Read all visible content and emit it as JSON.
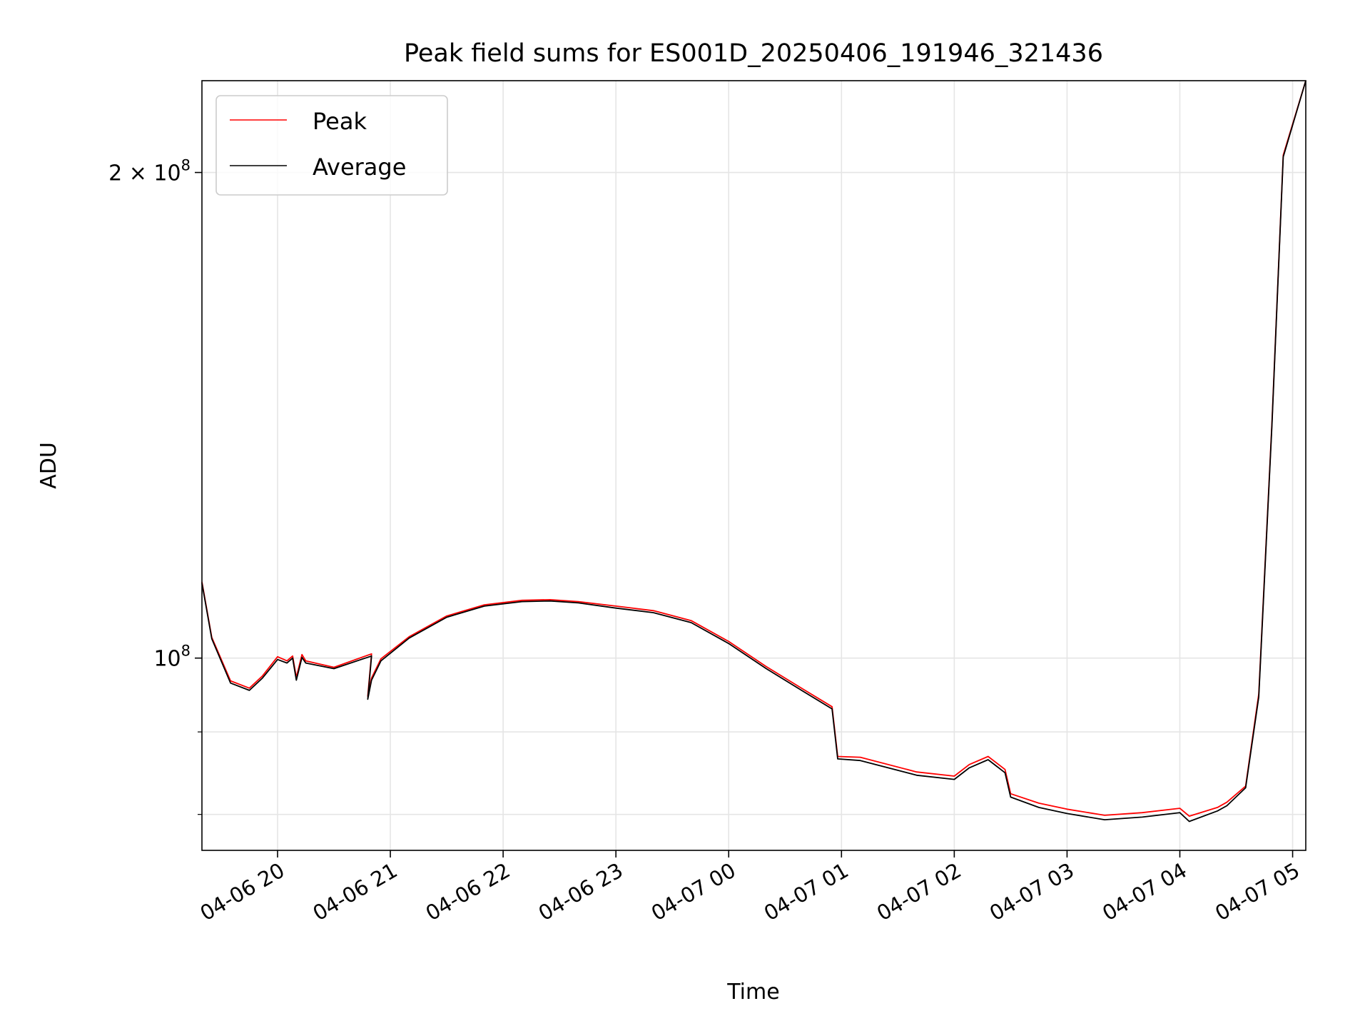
{
  "chart_data": {
    "type": "line",
    "title": "Peak field sums for ES001D_20250406_191946_321436",
    "xlabel": "Time",
    "ylabel": "ADU",
    "x_range": [
      "2025-04-06 19:19:46",
      "2025-04-07 05:07:00"
    ],
    "y_scale": "log",
    "ylim": [
      76000000,
      228000000
    ],
    "grid": true,
    "legend_position": "upper-left",
    "x_ticks": [
      "04-06 20",
      "04-06 21",
      "04-06 22",
      "04-06 23",
      "04-07 00",
      "04-07 01",
      "04-07 02",
      "04-07 03",
      "04-07 04",
      "04-07 05"
    ],
    "x_tick_times": [
      "2025-04-06 20:00",
      "2025-04-06 21:00",
      "2025-04-06 22:00",
      "2025-04-06 23:00",
      "2025-04-07 00:00",
      "2025-04-07 01:00",
      "2025-04-07 02:00",
      "2025-04-07 03:00",
      "2025-04-07 04:00",
      "2025-04-07 05:00"
    ],
    "y_major_ticks": [
      {
        "value": 100000000,
        "label": "10",
        "exponent": "8"
      },
      {
        "value": 200000000,
        "label": "2 × 10",
        "exponent": "8"
      }
    ],
    "y_minor_ticks": [
      90000000,
      80000000
    ],
    "series": [
      {
        "name": "Peak",
        "color": "#ff0000",
        "x": [
          "2025-04-06 19:19:46",
          "2025-04-06 19:25",
          "2025-04-06 19:35",
          "2025-04-06 19:45",
          "2025-04-06 19:52",
          "2025-04-06 20:00",
          "2025-04-06 20:05",
          "2025-04-06 20:08",
          "2025-04-06 20:10",
          "2025-04-06 20:13",
          "2025-04-06 20:15",
          "2025-04-06 20:30",
          "2025-04-06 20:50",
          "2025-04-06 20:48",
          "2025-04-06 20:50",
          "2025-04-06 20:55",
          "2025-04-06 21:10",
          "2025-04-06 21:30",
          "2025-04-06 21:50",
          "2025-04-06 22:10",
          "2025-04-06 22:25",
          "2025-04-06 22:40",
          "2025-04-06 23:00",
          "2025-04-06 23:20",
          "2025-04-06 23:40",
          "2025-04-07 00:00",
          "2025-04-07 00:20",
          "2025-04-07 00:40",
          "2025-04-07 00:55",
          "2025-04-07 00:58",
          "2025-04-07 01:10",
          "2025-04-07 01:40",
          "2025-04-07 02:00",
          "2025-04-07 02:08",
          "2025-04-07 02:18",
          "2025-04-07 02:27",
          "2025-04-07 02:30",
          "2025-04-07 02:45",
          "2025-04-07 03:00",
          "2025-04-07 03:20",
          "2025-04-07 03:40",
          "2025-04-07 04:00",
          "2025-04-07 04:05",
          "2025-04-07 04:20",
          "2025-04-07 04:25",
          "2025-04-07 04:35",
          "2025-04-07 04:42",
          "2025-04-07 04:49",
          "2025-04-07 04:55",
          "2025-04-07 05:07"
        ],
        "y": [
          111500000,
          103000000,
          96800000,
          95800000,
          97500000,
          100200000,
          99600000,
          100300000,
          97300000,
          100500000,
          99600000,
          98700000,
          100600000,
          94700000,
          97200000,
          99900000,
          103100000,
          106200000,
          107900000,
          108600000,
          108700000,
          108400000,
          107700000,
          107000000,
          105500000,
          102400000,
          98800000,
          95600000,
          93300000,
          86900000,
          86800000,
          85000000,
          84500000,
          85900000,
          86900000,
          85300000,
          82400000,
          81300000,
          80600000,
          79900000,
          80200000,
          80700000,
          79800000,
          80800000,
          81400000,
          83300000,
          95000000,
          140000000,
          205000000,
          228000000
        ]
      },
      {
        "name": "Average",
        "color": "#000000",
        "x": [
          "2025-04-06 19:19:46",
          "2025-04-06 19:25",
          "2025-04-06 19:35",
          "2025-04-06 19:45",
          "2025-04-06 19:52",
          "2025-04-06 20:00",
          "2025-04-06 20:05",
          "2025-04-06 20:08",
          "2025-04-06 20:10",
          "2025-04-06 20:13",
          "2025-04-06 20:15",
          "2025-04-06 20:30",
          "2025-04-06 20:50",
          "2025-04-06 20:48",
          "2025-04-06 20:50",
          "2025-04-06 20:55",
          "2025-04-06 21:10",
          "2025-04-06 21:30",
          "2025-04-06 21:50",
          "2025-04-06 22:10",
          "2025-04-06 22:25",
          "2025-04-06 22:40",
          "2025-04-06 23:00",
          "2025-04-06 23:20",
          "2025-04-06 23:40",
          "2025-04-07 00:00",
          "2025-04-07 00:20",
          "2025-04-07 00:40",
          "2025-04-07 00:55",
          "2025-04-07 00:58",
          "2025-04-07 01:10",
          "2025-04-07 01:40",
          "2025-04-07 02:00",
          "2025-04-07 02:08",
          "2025-04-07 02:18",
          "2025-04-07 02:27",
          "2025-04-07 02:30",
          "2025-04-07 02:45",
          "2025-04-07 03:00",
          "2025-04-07 03:20",
          "2025-04-07 03:40",
          "2025-04-07 04:00",
          "2025-04-07 04:05",
          "2025-04-07 04:20",
          "2025-04-07 04:25",
          "2025-04-07 04:35",
          "2025-04-07 04:42",
          "2025-04-07 04:49",
          "2025-04-07 04:55",
          "2025-04-07 05:07"
        ],
        "y": [
          111300000,
          102800000,
          96500000,
          95500000,
          97200000,
          99800000,
          99300000,
          100000000,
          96900000,
          100100000,
          99300000,
          98500000,
          100300000,
          94300000,
          96900000,
          99600000,
          102900000,
          106000000,
          107700000,
          108400000,
          108500000,
          108200000,
          107400000,
          106700000,
          105200000,
          102100000,
          98500000,
          95300000,
          93000000,
          86600000,
          86400000,
          84600000,
          84100000,
          85500000,
          86500000,
          84900000,
          82000000,
          80800000,
          80100000,
          79400000,
          79700000,
          80200000,
          79200000,
          80400000,
          81000000,
          83100000,
          94600000,
          139500000,
          204500000,
          228000000
        ]
      }
    ]
  }
}
